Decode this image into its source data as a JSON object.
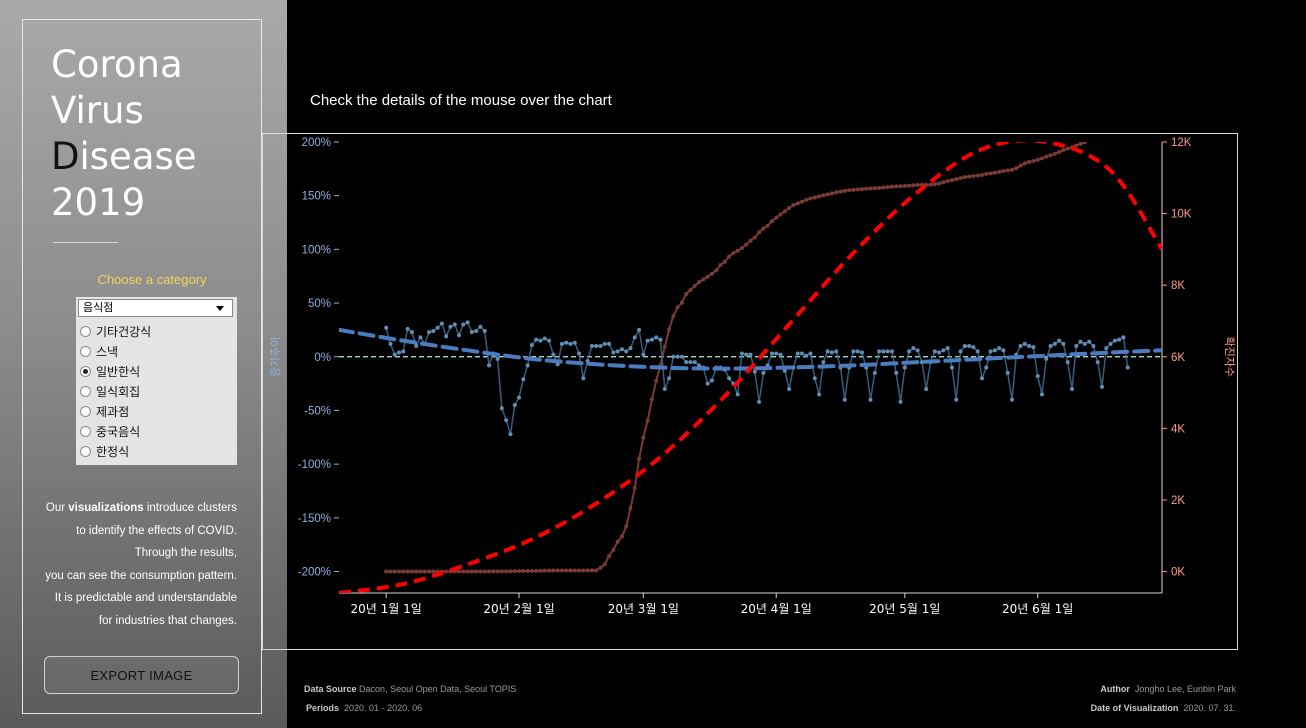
{
  "sidebar": {
    "title_lines": [
      "Corona",
      "Virus",
      "Disease",
      "2019"
    ],
    "choose_label": "Choose a category",
    "select_value": "음식점",
    "options": [
      "기타건강식",
      "스낵",
      "일반한식",
      "일식회집",
      "제과점",
      "중국음식",
      "한정식"
    ],
    "selected_option": "일반한식",
    "description": {
      "line1_pre": "Our ",
      "line1_bold": "visualizations",
      "line1_post": " introduce clusters",
      "line2": "to identify the effects of COVID.",
      "line3": "Through the results,",
      "line4": "you can see the consumption pattern.",
      "line5": "It is predictable and understandable",
      "line6": "for industries that changes."
    },
    "export_label": "EXPORT IMAGE"
  },
  "headline": "Check the details of the mouse over the chart",
  "footer": {
    "source_label": "Data Source",
    "source_value": "Dacon, Seoul Open Data, Seoul TOPIS",
    "periods_label": "Periods",
    "periods_value": "2020. 01 - 2020. 06",
    "author_label": "Author",
    "author_value": "Jongho Lee, Eunbin Park",
    "date_label": "Date of Visualization",
    "date_value": "2020. 07. 31."
  },
  "colors": {
    "growth": "#4f81bd",
    "growth_trend": "#4a7cc0",
    "confirmed": "#7a3a36",
    "confirmed_trend": "#ff0000",
    "left_axis": "#8fb1e0",
    "right_axis": "#ff9a8a",
    "zero_line": "#b8f0e0"
  },
  "chart_data": {
    "type": "line",
    "x_start": "2019-12-21",
    "x_end": "2020-06-30",
    "x_ticks": [
      "20년 1월 1일",
      "20년 2월 1일",
      "20년 3월 1일",
      "20년 4월 1일",
      "20년 5월 1일",
      "20년 6월 1일"
    ],
    "x_tick_dates": [
      "2020-01-01",
      "2020-02-01",
      "2020-03-01",
      "2020-04-01",
      "2020-05-01",
      "2020-06-01"
    ],
    "ylabel_left": "증가추이",
    "ylabel_right": "확진자수",
    "ylim_left": [
      -2.2,
      2.0
    ],
    "ylim_right": [
      -600,
      12000
    ],
    "left_ticks": [
      "200%",
      "150%",
      "100%",
      "50%",
      "0%",
      "-50%",
      "-100%",
      "-150%",
      "-200%"
    ],
    "right_ticks": [
      "12K",
      "10K",
      "8K",
      "6K",
      "4K",
      "2K",
      "0K"
    ],
    "series": [
      {
        "axis": "left",
        "unit": "ratio (1 = 100%)",
        "start_date": "2020-01-01",
        "step_days": 1,
        "values": [
          0.27,
          0.12,
          0.02,
          0.04,
          0.05,
          0.26,
          0.23,
          0.1,
          0.18,
          0.12,
          0.23,
          0.24,
          0.27,
          0.31,
          0.19,
          0.28,
          0.3,
          0.2,
          0.3,
          0.32,
          0.23,
          0.24,
          0.28,
          0.24,
          -0.08,
          0.03,
          -0.02,
          -0.48,
          -0.59,
          -0.72,
          -0.45,
          -0.38,
          -0.21,
          -0.08,
          0.11,
          0.16,
          0.15,
          0.17,
          0.15,
          0.02,
          -0.07,
          0.12,
          0.13,
          0.12,
          0.13,
          0.03,
          -0.2,
          -0.04,
          0.1,
          0.1,
          0.1,
          0.12,
          0.12,
          0.04,
          0.05,
          0.07,
          0.05,
          0.08,
          0.18,
          0.25,
          0.02,
          0.15,
          0.16,
          0.18,
          0.16,
          -0.3,
          -0.2,
          0.0,
          0.0,
          0.0,
          -0.05,
          -0.05,
          -0.05,
          -0.08,
          -0.1,
          -0.25,
          -0.22,
          -0.1,
          -0.1,
          -0.12,
          -0.2,
          -0.25,
          -0.35,
          0.03,
          0.02,
          0.02,
          -0.14,
          -0.42,
          -0.15,
          -0.08,
          0.03,
          0.03,
          0.02,
          -0.13,
          -0.3,
          -0.1,
          0.03,
          0.03,
          0.01,
          0.03,
          -0.2,
          -0.35,
          -0.05,
          0.05,
          0.04,
          0.05,
          -0.1,
          -0.4,
          -0.1,
          0.05,
          0.05,
          0.04,
          -0.1,
          -0.4,
          -0.15,
          0.05,
          0.05,
          0.05,
          0.05,
          -0.15,
          -0.42,
          -0.1,
          0.05,
          0.08,
          0.06,
          -0.05,
          -0.3,
          -0.05,
          0.05,
          0.04,
          0.06,
          0.08,
          -0.1,
          -0.4,
          0.05,
          0.1,
          0.1,
          0.09,
          0.05,
          -0.2,
          -0.1,
          0.05,
          0.06,
          0.08,
          0.06,
          -0.15,
          -0.4,
          0.02,
          0.1,
          0.12,
          0.1,
          0.09,
          -0.18,
          -0.35,
          -0.02,
          0.1,
          0.12,
          0.15,
          0.12,
          -0.05,
          -0.3,
          0.1,
          0.14,
          0.12,
          0.14,
          0.1,
          -0.05,
          -0.28,
          0.08,
          0.12,
          0.15,
          0.16,
          0.18,
          -0.1
        ]
      },
      {
        "axis": "right",
        "unit": "cases",
        "start_date": "2020-01-01",
        "step_days": 1,
        "values": [
          0,
          0,
          0,
          0,
          0,
          0,
          0,
          0,
          0,
          0,
          0,
          0,
          0,
          0,
          0,
          0,
          0,
          0,
          0,
          1,
          1,
          1,
          1,
          2,
          2,
          3,
          4,
          4,
          4,
          6,
          11,
          12,
          15,
          15,
          16,
          18,
          23,
          24,
          24,
          27,
          27,
          28,
          28,
          28,
          28,
          28,
          29,
          30,
          31,
          31,
          104,
          204,
          433,
          602,
          833,
          977,
          1261,
          1766,
          2337,
          3150,
          3736,
          4212,
          4812,
          5328,
          5766,
          6284,
          6767,
          7134,
          7382,
          7513,
          7755,
          7869,
          7979,
          8086,
          8162,
          8236,
          8320,
          8413,
          8565,
          8652,
          8799,
          8897,
          8961,
          9037,
          9137,
          9241,
          9332,
          9478,
          9583,
          9661,
          9786,
          9887,
          9976,
          10062,
          10156,
          10237,
          10284,
          10331,
          10384,
          10423,
          10450,
          10480,
          10512,
          10537,
          10564,
          10591,
          10613,
          10635,
          10653,
          10661,
          10674,
          10683,
          10694,
          10702,
          10708,
          10718,
          10728,
          10738,
          10752,
          10761,
          10765,
          10774,
          10780,
          10793,
          10801,
          10804,
          10806,
          10810,
          10822,
          10840,
          10874,
          10909,
          10936,
          10962,
          10991,
          11018,
          11037,
          11050,
          11065,
          11078,
          11110,
          11122,
          11142,
          11165,
          11190,
          11206,
          11225,
          11265,
          11344,
          11402,
          11441,
          11468,
          11503,
          11541,
          11590,
          11629,
          11668,
          11719,
          11776,
          11814,
          11852,
          11902,
          11947,
          11998,
          12051,
          12085,
          12121,
          12155,
          12198,
          12257,
          12306,
          12373,
          12421,
          12438,
          12484,
          12535,
          12563,
          12602,
          12653,
          12715,
          12757,
          12800,
          12850,
          12904,
          12967,
          13030
        ]
      },
      {
        "axis": "left",
        "type": "trend",
        "x": [
          "2019-12-21",
          "2020-01-05",
          "2020-01-20",
          "2020-02-04",
          "2020-02-19",
          "2020-03-05",
          "2020-03-20",
          "2020-04-04",
          "2020-04-19",
          "2020-05-04",
          "2020-05-19",
          "2020-06-03",
          "2020-06-18",
          "2020-06-30"
        ],
        "values": [
          0.25,
          0.15,
          0.06,
          -0.02,
          -0.07,
          -0.1,
          -0.11,
          -0.1,
          -0.08,
          -0.05,
          -0.02,
          0.01,
          0.04,
          0.06
        ]
      },
      {
        "axis": "right",
        "type": "trend",
        "x": [
          "2019-12-21",
          "2020-01-05",
          "2020-01-20",
          "2020-02-04",
          "2020-02-19",
          "2020-03-05",
          "2020-03-20",
          "2020-04-04",
          "2020-04-19",
          "2020-05-04",
          "2020-05-19",
          "2020-06-03",
          "2020-06-18",
          "2020-06-30"
        ],
        "values": [
          -600,
          -350,
          200,
          900,
          1900,
          3200,
          4900,
          6900,
          8900,
          10600,
          11800,
          12000,
          11200,
          9000
        ]
      }
    ]
  }
}
